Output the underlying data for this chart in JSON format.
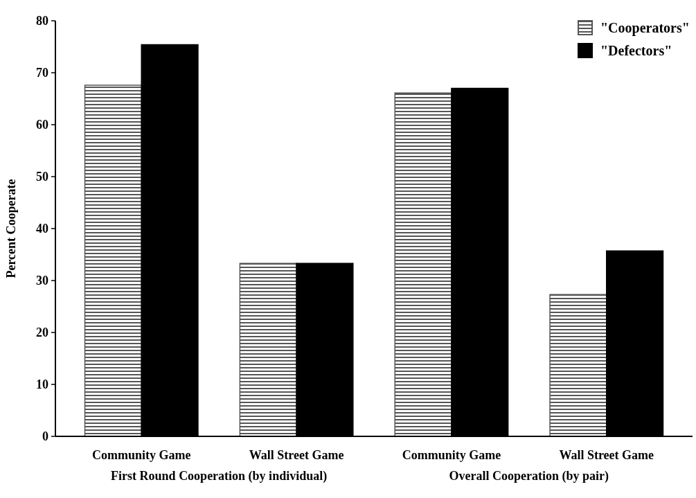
{
  "chart_data": {
    "type": "bar",
    "ylabel": "Percent Cooperate",
    "categories": [
      "Community Game",
      "Wall Street Game",
      "Community Game",
      "Wall Street Game"
    ],
    "series": [
      {
        "name": "\"Cooperators\"",
        "color": "#555555",
        "values": [
          67.6,
          33.3,
          66.1,
          27.3
        ]
      },
      {
        "name": "\"Defectors\"",
        "color": "#000000",
        "values": [
          75.4,
          33.3,
          67.0,
          35.7
        ]
      }
    ],
    "annotations": [
      "First Round Cooperation (by individual)",
      "Overall Cooperation (by pair)"
    ],
    "ylim": [
      0,
      80
    ],
    "yticks": [
      0,
      10,
      20,
      30,
      40,
      50,
      60,
      70,
      80
    ],
    "grid": false,
    "legend": "top right"
  }
}
